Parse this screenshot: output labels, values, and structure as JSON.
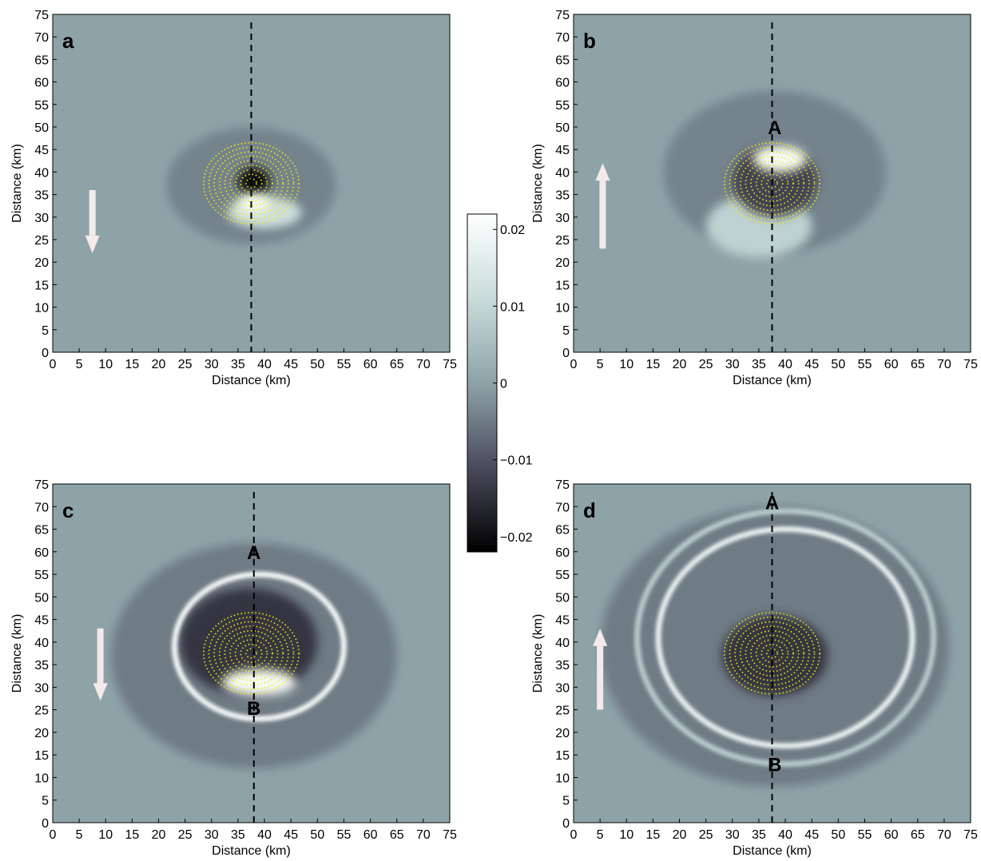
{
  "chart_data": {
    "type": "heatmap",
    "colorbar": {
      "range": [
        -0.022,
        0.022
      ],
      "ticks": [
        0.02,
        0.01,
        0,
        -0.01,
        -0.02
      ],
      "tick_labels": [
        "0.02",
        "0.01",
        "0",
        "−0.01",
        "−0.02"
      ],
      "colormap": [
        "#000000",
        "#4a4a5c",
        "#8ea3a8",
        "#c9dcdb",
        "#ffffff"
      ]
    },
    "axes_defaults": {
      "xlabel": "Distance (km)",
      "ylabel": "Distance (km)",
      "xlim": [
        0,
        75
      ],
      "ylim": [
        0,
        75
      ],
      "ticks": [
        0,
        5,
        10,
        15,
        20,
        25,
        30,
        35,
        40,
        45,
        50,
        55,
        60,
        65,
        70,
        75
      ]
    },
    "vortex_center": [
      37.5,
      37.5
    ],
    "panels": [
      {
        "label": "a",
        "section_x": 37.5,
        "arrow": {
          "direction": "down",
          "x": 7.5,
          "y_from": 36,
          "y_to": 22
        },
        "points": [],
        "features": [
          {
            "kind": "blob",
            "cx": 37.5,
            "cy": 37,
            "rx": 16,
            "ry": 13,
            "value": -0.004
          },
          {
            "kind": "blob",
            "cx": 38,
            "cy": 38,
            "rx": 3,
            "ry": 3,
            "value": -0.02
          },
          {
            "kind": "blob",
            "cx": 40,
            "cy": 31,
            "rx": 7,
            "ry": 3.5,
            "value": 0.012
          },
          {
            "kind": "blob",
            "cx": 38,
            "cy": 33,
            "rx": 3,
            "ry": 2,
            "value": 0.02
          }
        ]
      },
      {
        "label": "b",
        "section_x": 37.5,
        "arrow": {
          "direction": "up",
          "x": 5.5,
          "y_from": 23,
          "y_to": 42
        },
        "points": [
          {
            "name": "A",
            "x": 38,
            "y": 50
          }
        ],
        "features": [
          {
            "kind": "blob",
            "cx": 38,
            "cy": 40,
            "rx": 21,
            "ry": 18,
            "value": -0.004
          },
          {
            "kind": "blob",
            "cx": 35,
            "cy": 28,
            "rx": 10,
            "ry": 7,
            "value": 0.009
          },
          {
            "kind": "blob",
            "cx": 38,
            "cy": 38,
            "rx": 8,
            "ry": 8,
            "value": -0.012
          },
          {
            "kind": "blob",
            "cx": 39,
            "cy": 43,
            "rx": 5,
            "ry": 3,
            "value": 0.02
          }
        ]
      },
      {
        "label": "c",
        "section_x": 38,
        "arrow": {
          "direction": "down",
          "x": 9,
          "y_from": 43,
          "y_to": 27
        },
        "points": [
          {
            "name": "A",
            "x": 38,
            "y": 60
          },
          {
            "name": "B",
            "x": 38,
            "y": 25.5
          }
        ],
        "features": [
          {
            "kind": "blob",
            "cx": 38,
            "cy": 37,
            "rx": 27,
            "ry": 25,
            "value": -0.005
          },
          {
            "kind": "blob",
            "cx": 37,
            "cy": 40,
            "rx": 13,
            "ry": 12,
            "value": -0.014
          },
          {
            "kind": "ring",
            "cx": 39,
            "cy": 39,
            "r": 16,
            "value": 0.02
          },
          {
            "kind": "blob",
            "cx": 39,
            "cy": 31,
            "rx": 7,
            "ry": 3,
            "value": 0.02
          }
        ]
      },
      {
        "label": "d",
        "section_x": 37.5,
        "arrow": {
          "direction": "up",
          "x": 5,
          "y_from": 25,
          "y_to": 43
        },
        "points": [
          {
            "name": "A",
            "x": 37.5,
            "y": 71
          },
          {
            "name": "B",
            "x": 38,
            "y": 13
          }
        ],
        "features": [
          {
            "kind": "blob",
            "cx": 38,
            "cy": 39,
            "rx": 33,
            "ry": 31,
            "value": -0.005
          },
          {
            "kind": "blob",
            "cx": 38,
            "cy": 37,
            "rx": 10,
            "ry": 9,
            "value": -0.014
          },
          {
            "kind": "ring",
            "cx": 40,
            "cy": 41,
            "r": 24,
            "value": 0.018
          },
          {
            "kind": "ring",
            "cx": 40,
            "cy": 41,
            "r": 28,
            "value": 0.008
          }
        ]
      }
    ]
  }
}
